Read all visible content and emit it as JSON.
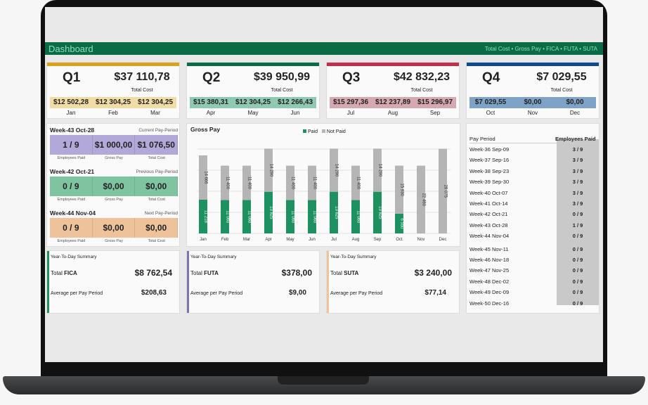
{
  "header": {
    "title": "Dashboard",
    "subtitle": "Total Cost • Gross Pay • FICA • FUTA • SUTA"
  },
  "quarters": [
    {
      "name": "Q1",
      "total": "$37 110,78",
      "label": "Total Cost",
      "color": "#d9a21b",
      "band": "#f1dca6",
      "months": [
        "Jan",
        "Feb",
        "Mar"
      ],
      "values": [
        "$12 502,28",
        "$12 304,25",
        "$12 304,25"
      ]
    },
    {
      "name": "Q2",
      "total": "$39 950,99",
      "label": "Total Cost",
      "color": "#0a6b47",
      "band": "#8fc9b1",
      "months": [
        "Apr",
        "May",
        "Jun"
      ],
      "values": [
        "$15 380,31",
        "$12 304,25",
        "$12 266,43"
      ]
    },
    {
      "name": "Q3",
      "total": "$42 832,23",
      "label": "Total Cost",
      "color": "#c0304a",
      "band": "#d6a9b2",
      "months": [
        "Jul",
        "Aug",
        "Sep"
      ],
      "values": [
        "$15 297,36",
        "$12 237,89",
        "$15 296,97"
      ]
    },
    {
      "name": "Q4",
      "total": "$7 029,55",
      "label": "Total Cost",
      "color": "#0e4a8e",
      "band": "#7fa3c7",
      "months": [
        "Oct",
        "Nov",
        "Dec"
      ],
      "values": [
        "$7 029,55",
        "$0,00",
        "$0,00"
      ]
    }
  ],
  "pay_periods": [
    {
      "week": "Week-43 Oct-28",
      "kind": "Current Pay-Period",
      "color": "#b3a9d9",
      "values": [
        "1 / 9",
        "$1 000,00",
        "$1 076,50"
      ],
      "labels": [
        "Employees Paid",
        "Gross Pay",
        "Total Cost"
      ]
    },
    {
      "week": "Week-42 Oct-21",
      "kind": "Previous Pay-Period",
      "color": "#7fc4a1",
      "values": [
        "0 / 9",
        "$0,00",
        "$0,00"
      ],
      "labels": [
        "Employees Paid",
        "Gross Pay",
        "Total Cost"
      ]
    },
    {
      "week": "Week-44 Nov-04",
      "kind": "Next Pay-Period",
      "color": "#eec39c",
      "values": [
        "0 / 9",
        "$0,00",
        "$0,00"
      ],
      "labels": [
        "Employees Paid",
        "Gross Pay",
        "Total Cost"
      ]
    }
  ],
  "chart_data": {
    "type": "bar",
    "stacked": true,
    "title": "Gross Pay",
    "categories": [
      "Jan",
      "Feb",
      "Mar",
      "Apr",
      "May",
      "Jun",
      "Jul",
      "Aug",
      "Sep",
      "Oct",
      "Nov",
      "Dec"
    ],
    "series": [
      {
        "name": "Paid",
        "color": "#1e9160",
        "values": [
          11218,
          11060,
          11060,
          13825,
          11060,
          11060,
          13825,
          11060,
          13825,
          6550,
          0,
          0
        ],
        "labels": [
          "11 218",
          "11 060",
          "11 060",
          "13 825",
          "11 060",
          "11 060",
          "13 825",
          "11 060",
          "13 825",
          "6 550",
          "",
          ""
        ]
      },
      {
        "name": "Not Paid",
        "color": "#b5b5b5",
        "values": [
          14666,
          11400,
          11400,
          14290,
          11400,
          11400,
          14290,
          11400,
          14290,
          15930,
          22460,
          28075
        ],
        "labels": [
          "14 666",
          "11 400",
          "11 400",
          "14 290",
          "11 400",
          "11 400",
          "14 290",
          "11 400",
          "14 290",
          "15 930",
          "22 460",
          "28 075"
        ]
      }
    ],
    "legend": "top",
    "grid": true
  },
  "summaries": [
    {
      "heading": "Year-To-Day Summary",
      "total_prefix": "Total ",
      "total_name": "FICA",
      "total": "$8 762,54",
      "avg_label": "Average per Pay Period",
      "avg": "$208,63",
      "color": "#1e9160"
    },
    {
      "heading": "Year-To-Day Summary",
      "total_prefix": "Total ",
      "total_name": "FUTA",
      "total": "$378,00",
      "avg_label": "Average per Pay Period",
      "avg": "$9,00",
      "color": "#7d73b3"
    },
    {
      "heading": "Year-To-Day Summary",
      "total_prefix": "Total ",
      "total_name": "SUTA",
      "total": "$3 240,00",
      "avg_label": "Average per Pay Period",
      "avg": "$77,14",
      "color": "#eec39c"
    }
  ],
  "table": {
    "headers": [
      "Pay Period",
      "Employees Paid"
    ],
    "rows": [
      [
        "Week-36 Sep-09",
        "3 / 9"
      ],
      [
        "Week-37 Sep-16",
        "3 / 9"
      ],
      [
        "Week-38 Sep-23",
        "3 / 9"
      ],
      [
        "Week-39 Sep-30",
        "3 / 9"
      ],
      [
        "Week-40 Oct-07",
        "3 / 9"
      ],
      [
        "Week-41 Oct-14",
        "3 / 9"
      ],
      [
        "Week-42 Oct-21",
        "0 / 9"
      ],
      [
        "Week-43 Oct-28",
        "1 / 9"
      ],
      [
        "Week-44 Nov-04",
        "0 / 9"
      ],
      [
        "Week-45 Nov-11",
        "0 / 9"
      ],
      [
        "Week-46 Nov-18",
        "0 / 9"
      ],
      [
        "Week-47 Nov-25",
        "0 / 9"
      ],
      [
        "Week-48 Dec-02",
        "0 / 9"
      ],
      [
        "Week-49 Dec-09",
        "0 / 9"
      ],
      [
        "Week-50 Dec-16",
        "0 / 9"
      ]
    ]
  }
}
